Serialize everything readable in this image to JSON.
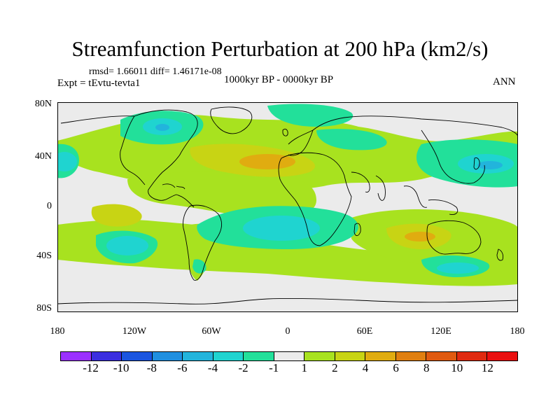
{
  "title": "Streamfunction Perturbation at 200 hPa (km2/s)",
  "stats": "rmsd= 1.66011 diff= 1.46171e-08",
  "experiment": "Expt = tEvtu-tevta1",
  "period": "1000kyr BP - 0000kyr BP",
  "season": "ANN",
  "map_data": {
    "lat_labels": [
      "80N",
      "40N",
      "0",
      "40S",
      "80S"
    ],
    "lon_labels": [
      "180",
      "120W",
      "60W",
      "0",
      "60E",
      "120E",
      "180"
    ]
  },
  "colorbar": {
    "labels": [
      "-12",
      "-10",
      "-8",
      "-6",
      "-4",
      "-2",
      "-1",
      "1",
      "2",
      "4",
      "6",
      "8",
      "10",
      "12"
    ],
    "colors": [
      "#9b30ff",
      "#3b2ee0",
      "#1a55e0",
      "#1f8fe0",
      "#22b4dc",
      "#1fd4d0",
      "#22e09a",
      "#ebebeb",
      "#a8e21f",
      "#c8d414",
      "#e0ac10",
      "#e07f10",
      "#e05a10",
      "#e02a10",
      "#ea1010"
    ]
  },
  "palette": {
    "neutral": "#ebebeb",
    "pos1": "#a8e21f",
    "pos2": "#c8d414",
    "pos3": "#e0ac10",
    "neg1": "#22e09a",
    "neg2": "#1fd4d0",
    "neg3": "#22b4dc"
  }
}
